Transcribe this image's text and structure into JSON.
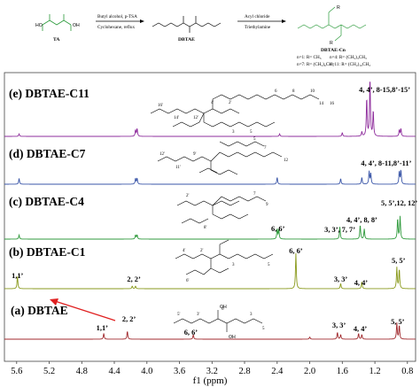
{
  "scheme": {
    "reactant_label": "TA",
    "step1_reagent": "Butyl alcohol, p-TSA",
    "step1_condition": "Cyclohexane, reflux",
    "intermediate_label": "DBTAE",
    "step2_reagent": "Acyl chloride",
    "step2_condition": "Triethylamine",
    "product_label": "DBTAE-Cn",
    "r_definitions": [
      "n=1: R= CH₃",
      "n=4: R= (CH₂)₃CH₃",
      "n=7: R= (CH₂)₆CH₃",
      "n=11: R= (CH₂)₁₀CH₃"
    ]
  },
  "colors": {
    "C11": "#8e2c9c",
    "C7": "#3a56a8",
    "C4": "#2f9a3c",
    "C1": "#8a9a1c",
    "DBTAE": "#a0282c",
    "arrow": "#e02020"
  },
  "chart_data": {
    "type": "line",
    "xlabel": "f1 (ppm)",
    "xlim": [
      5.75,
      0.7
    ],
    "x_reversed": true,
    "xticks": [
      "5.6",
      "5.2",
      "4.8",
      "4.4",
      "4.0",
      "3.6",
      "3.2",
      "2.8",
      "2.4",
      "2.0",
      "1.6",
      "1.2",
      "0.8"
    ],
    "xtick_values": [
      5.6,
      5.2,
      4.8,
      4.4,
      4.0,
      3.6,
      3.2,
      2.8,
      2.4,
      2.0,
      1.6,
      1.2,
      0.8
    ],
    "series": [
      {
        "name": "(e) DBTAE-C11",
        "key": "C11",
        "peaks": [
          [
            5.57,
            4
          ],
          [
            4.14,
            10
          ],
          [
            4.12,
            12
          ],
          [
            2.37,
            4
          ],
          [
            1.6,
            6
          ],
          [
            1.36,
            7
          ],
          [
            1.3,
            60
          ],
          [
            1.26,
            92
          ],
          [
            1.22,
            40
          ],
          [
            0.9,
            10
          ],
          [
            0.88,
            12
          ]
        ],
        "annotations": [
          {
            "text": "4, 4’, 8-15,8’-15’",
            "ppm": 1.08
          }
        ]
      },
      {
        "name": "(d) DBTAE-C7",
        "key": "C7",
        "peaks": [
          [
            5.57,
            5
          ],
          [
            4.14,
            5
          ],
          [
            4.12,
            5
          ],
          [
            2.4,
            6
          ],
          [
            1.62,
            5
          ],
          [
            1.36,
            6
          ],
          [
            1.27,
            11
          ],
          [
            1.25,
            9
          ],
          [
            0.9,
            11
          ],
          [
            0.88,
            12
          ]
        ],
        "annotations": [
          {
            "text": "4, 4’, 8-11,8’-11’",
            "ppm": 1.06
          }
        ]
      },
      {
        "name": "(c) DBTAE-C4",
        "key": "C4",
        "peaks": [
          [
            5.57,
            4
          ],
          [
            4.14,
            4
          ],
          [
            4.12,
            4
          ],
          [
            2.4,
            10
          ],
          [
            2.38,
            9
          ],
          [
            1.63,
            12
          ],
          [
            1.38,
            14
          ],
          [
            1.33,
            10
          ],
          [
            0.92,
            20
          ],
          [
            0.89,
            22
          ]
        ],
        "annotations": [
          {
            "text": "6, 6’",
            "ppm": 2.39
          },
          {
            "text": "3, 3’, 7, 7’",
            "ppm": 1.63
          },
          {
            "text": "4, 4’, 8, 8’",
            "ppm": 1.36
          },
          {
            "text": "5, 5’,12, 12’",
            "ppm": 0.9
          }
        ]
      },
      {
        "name": "(b) DBTAE-C1",
        "key": "C1",
        "peaks": [
          [
            5.59,
            14
          ],
          [
            4.18,
            3
          ],
          [
            4.14,
            3
          ],
          [
            2.17,
            40
          ],
          [
            1.62,
            6
          ],
          [
            1.36,
            8
          ],
          [
            0.93,
            24
          ],
          [
            0.9,
            22
          ]
        ],
        "annotations": [
          {
            "text": "1,1’",
            "ppm": 5.59
          },
          {
            "text": "2, 2’",
            "ppm": 4.16
          },
          {
            "text": "6, 6’",
            "ppm": 2.17
          },
          {
            "text": "3, 3’",
            "ppm": 1.62
          },
          {
            "text": "4, 4’",
            "ppm": 1.37
          },
          {
            "text": "5, 5’",
            "ppm": 0.91
          }
        ]
      },
      {
        "name": "(a) DBTAE",
        "key": "DBTAE",
        "peaks": [
          [
            4.53,
            5
          ],
          [
            4.24,
            7
          ],
          [
            3.43,
            4
          ],
          [
            2.0,
            2
          ],
          [
            1.66,
            6
          ],
          [
            1.62,
            4
          ],
          [
            1.4,
            5
          ],
          [
            1.36,
            4
          ],
          [
            0.93,
            14
          ],
          [
            0.9,
            12
          ]
        ],
        "annotations": [
          {
            "text": "1,1’",
            "ppm": 4.55
          },
          {
            "text": "6, 6’",
            "ppm": 3.46
          },
          {
            "text": "3, 3’",
            "ppm": 1.64
          },
          {
            "text": "4, 4’",
            "ppm": 1.38
          },
          {
            "text": "5, 5’",
            "ppm": 0.92
          },
          {
            "text": "2, 2’",
            "ppm": 4.22
          }
        ]
      }
    ]
  }
}
